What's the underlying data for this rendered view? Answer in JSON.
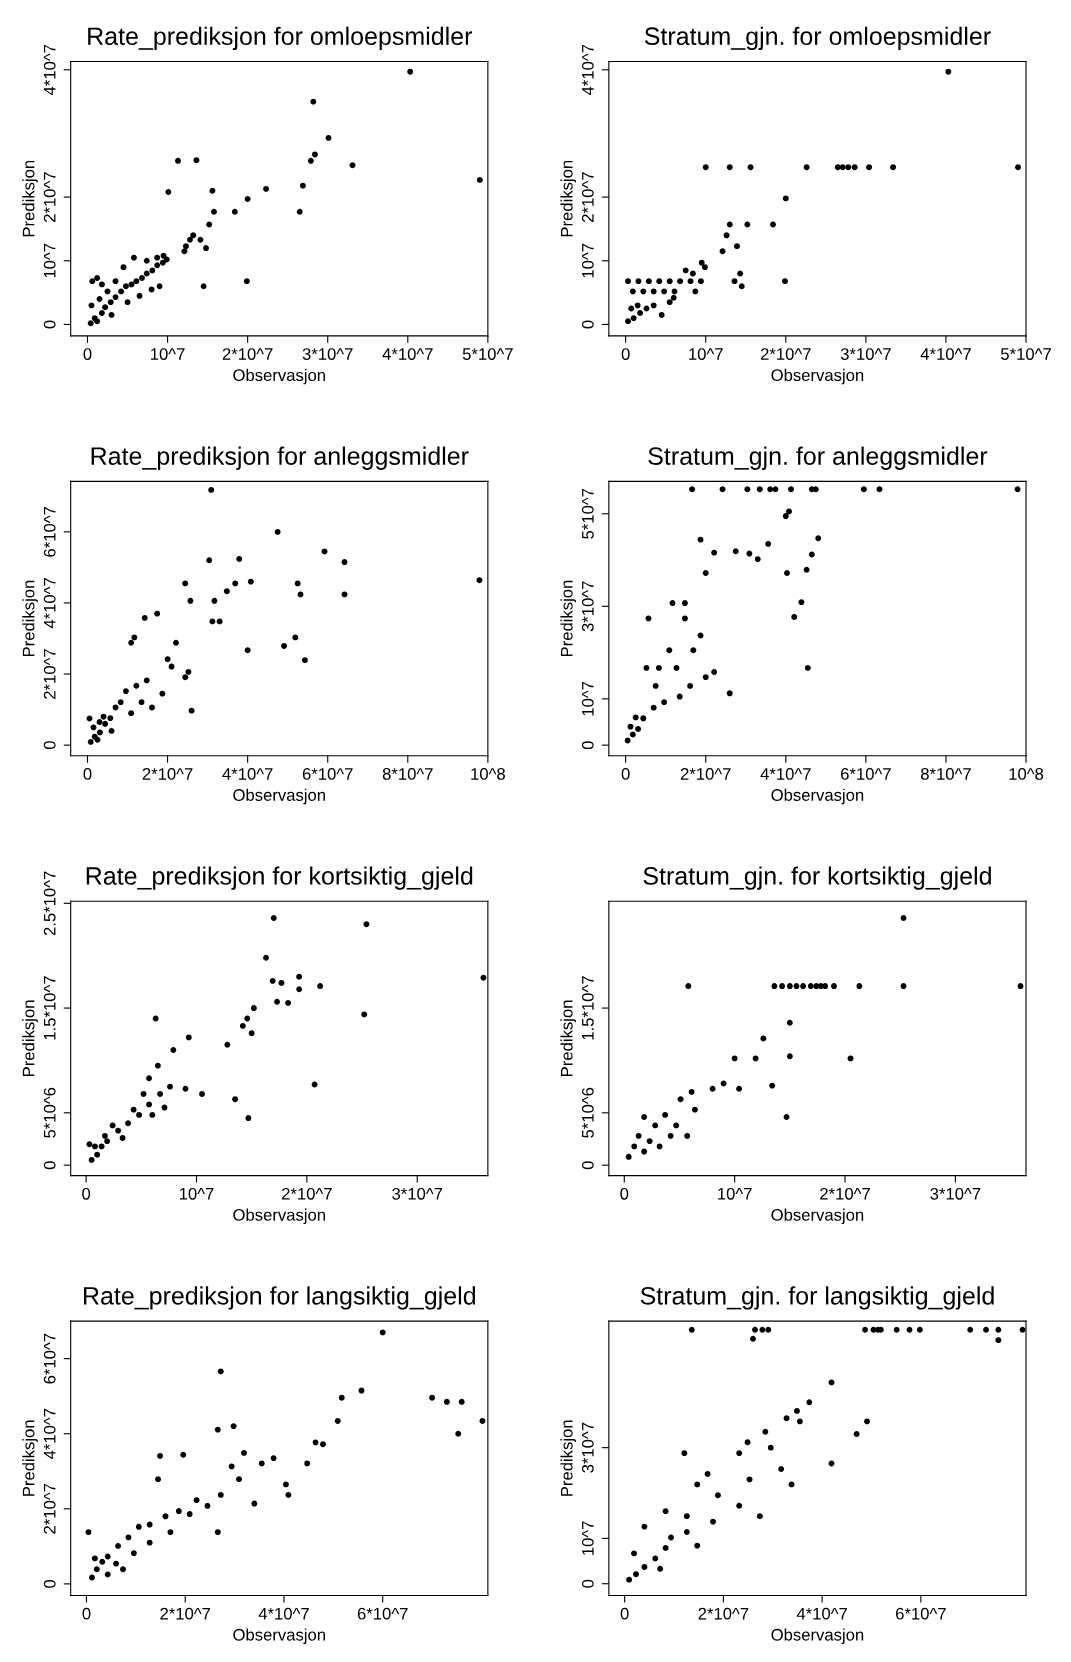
{
  "chart_data": [
    {
      "type": "scatter",
      "title": "Rate_prediksjon for omloepsmidler",
      "xlabel": "Observasjon",
      "ylabel": "Prediksjon",
      "color": "#000000",
      "marker": "circle",
      "xlim": [
        -2100000.0,
        50000000.0
      ],
      "ylim": [
        -1800000.0,
        41300000.0
      ],
      "xticks": [
        0,
        {
          "value": 10000000.0,
          "label": "10^7"
        },
        {
          "value": 20000000.0,
          "label": "2*10^7"
        },
        {
          "value": 30000000.0,
          "label": "3*10^7"
        },
        {
          "value": 40000000.0,
          "label": "4*10^7"
        },
        {
          "value": 50000000.0,
          "label": "5*10^7"
        }
      ],
      "yticks": [
        0,
        {
          "value": 10000000.0,
          "label": "10^7"
        },
        {
          "value": 20000000.0,
          "label": "2*10^7"
        },
        {
          "value": 40000000.0,
          "label": "4*10^7"
        }
      ],
      "x": [
        40300000.0,
        28200000.0,
        30100000.0,
        33100000.0,
        28400000.0,
        27900000.0,
        49000000.0,
        11300000.0,
        13600000.0,
        10100000.0,
        15600000.0,
        22300000.0,
        20000000.0,
        18400000.0,
        26900000.0,
        26500000.0,
        15800000.0,
        15200000.0,
        13200000.0,
        12800000.0,
        12300000.0,
        14100000.0,
        14800000.0,
        12100000.0,
        14500000.0,
        19900000.0,
        900000.0,
        1800000.0,
        2200000.0,
        2900000.0,
        3500000.0,
        4200000.0,
        4800000.0,
        5500000.0,
        6100000.0,
        6800000.0,
        7400000.0,
        8100000.0,
        8700000.0,
        9400000.0,
        9900000.0,
        600000.0,
        1200000.0,
        1800000.0,
        2500000.0,
        3500000.0,
        4500000.0,
        5800000.0,
        7400000.0,
        8700000.0,
        9500000.0,
        400000.0,
        1200000.0,
        500000.0,
        3000000.0,
        5000000.0,
        6500000.0,
        8000000.0,
        9000000.0,
        1500000.0
      ],
      "values": [
        39700000.0,
        35000000.0,
        29300000.0,
        25000000.0,
        26700000.0,
        25700000.0,
        22700000.0,
        25700000.0,
        25800000.0,
        20800000.0,
        21000000.0,
        21300000.0,
        19700000.0,
        17700000.0,
        21800000.0,
        17700000.0,
        17700000.0,
        15700000.0,
        14000000.0,
        13300000.0,
        12300000.0,
        13300000.0,
        12000000.0,
        11500000.0,
        6000000.0,
        6800000.0,
        1000000.0,
        1800000.0,
        2700000.0,
        3500000.0,
        4300000.0,
        5200000.0,
        6000000.0,
        6300000.0,
        6800000.0,
        7300000.0,
        8000000.0,
        8500000.0,
        9300000.0,
        9700000.0,
        10200000.0,
        6800000.0,
        7300000.0,
        6300000.0,
        5200000.0,
        6800000.0,
        9000000.0,
        10500000.0,
        10000000.0,
        10500000.0,
        10800000.0,
        200000.0,
        500000.0,
        3000000.0,
        1500000.0,
        3500000.0,
        4500000.0,
        5500000.0,
        6000000.0,
        4000000.0
      ]
    },
    {
      "type": "scatter",
      "title": "Stratum_gjn. for omloepsmidler",
      "xlabel": "Observasjon",
      "ylabel": "Prediksjon",
      "color": "#000000",
      "marker": "circle",
      "xlim": [
        -2100000.0,
        50000000.0
      ],
      "ylim": [
        -1800000.0,
        41300000.0
      ],
      "xticks": [
        0,
        {
          "value": 10000000.0,
          "label": "10^7"
        },
        {
          "value": 20000000.0,
          "label": "2*10^7"
        },
        {
          "value": 30000000.0,
          "label": "3*10^7"
        },
        {
          "value": 40000000.0,
          "label": "4*10^7"
        },
        {
          "value": 50000000.0,
          "label": "5*10^7"
        }
      ],
      "yticks": [
        0,
        {
          "value": 10000000.0,
          "label": "10^7"
        },
        {
          "value": 20000000.0,
          "label": "2*10^7"
        },
        {
          "value": 40000000.0,
          "label": "4*10^7"
        }
      ],
      "x": [
        40300000.0,
        49000000.0,
        10000000.0,
        13000000.0,
        15600000.0,
        22600000.0,
        26500000.0,
        27100000.0,
        27800000.0,
        28600000.0,
        30400000.0,
        33400000.0,
        20000000.0,
        18400000.0,
        15200000.0,
        13000000.0,
        12600000.0,
        13900000.0,
        12100000.0,
        14500000.0,
        19900000.0,
        14300000.0,
        13600000.0,
        300000.0,
        1600000.0,
        2900000.0,
        4200000.0,
        5500000.0,
        6800000.0,
        8100000.0,
        9400000.0,
        900000.0,
        2200000.0,
        3500000.0,
        4800000.0,
        6100000.0,
        8700000.0,
        8400000.0,
        9500000.0,
        9900000.0,
        7500000.0,
        300000.0,
        1000000.0,
        1800000.0,
        2600000.0,
        3500000.0,
        4500000.0,
        5500000.0,
        1500000.0,
        700000.0,
        6000000.0
      ],
      "values": [
        39700000.0,
        24700000.0,
        24700000.0,
        24700000.0,
        24700000.0,
        24700000.0,
        24700000.0,
        24700000.0,
        24700000.0,
        24700000.0,
        24700000.0,
        24700000.0,
        19800000.0,
        15700000.0,
        15700000.0,
        15700000.0,
        14000000.0,
        12300000.0,
        11500000.0,
        6000000.0,
        6800000.0,
        8000000.0,
        6800000.0,
        6800000.0,
        6800000.0,
        6800000.0,
        6800000.0,
        6800000.0,
        6800000.0,
        6800000.0,
        6800000.0,
        5200000.0,
        5200000.0,
        5200000.0,
        5200000.0,
        5200000.0,
        5200000.0,
        8000000.0,
        9700000.0,
        9000000.0,
        8500000.0,
        500000.0,
        1000000.0,
        1800000.0,
        2500000.0,
        3000000.0,
        1500000.0,
        3500000.0,
        3000000.0,
        2500000.0,
        4200000.0
      ]
    },
    {
      "type": "scatter",
      "title": "Rate_prediksjon for anleggsmidler",
      "xlabel": "Observasjon",
      "ylabel": "Prediksjon",
      "color": "#000000",
      "marker": "circle",
      "xlim": [
        -4200000.0,
        100000000.0
      ],
      "ylim": [
        -3000000.0,
        74200000.0
      ],
      "xticks": [
        0,
        {
          "value": 20000000.0,
          "label": "2*10^7"
        },
        {
          "value": 40000000.0,
          "label": "4*10^7"
        },
        {
          "value": 60000000.0,
          "label": "6*10^7"
        },
        {
          "value": 80000000.0,
          "label": "8*10^7"
        },
        {
          "value": 100000000.0,
          "label": "10^8"
        }
      ],
      "yticks": [
        0,
        {
          "value": 20000000.0,
          "label": "2*10^7"
        },
        {
          "value": 40000000.0,
          "label": "4*10^7"
        },
        {
          "value": 60000000.0,
          "label": "6*10^7"
        }
      ],
      "x": [
        30900000.0,
        47500000.0,
        59200000.0,
        30400000.0,
        37900000.0,
        64200000.0,
        40800000.0,
        24400000.0,
        25700000.0,
        17400000.0,
        14300000.0,
        11700000.0,
        10900000.0,
        31700000.0,
        34800000.0,
        36900000.0,
        31200000.0,
        33000000.0,
        52500000.0,
        53200000.0,
        64200000.0,
        97900000.0,
        40000000.0,
        49100000.0,
        51900000.0,
        54300000.0,
        22100000.0,
        20000000.0,
        21000000.0,
        25200000.0,
        24400000.0,
        26000000.0,
        14800000.0,
        12200000.0,
        9600000.0,
        8300000.0,
        7000000.0,
        5700000.0,
        4400000.0,
        3100000.0,
        1800000.0,
        800000.0,
        16100000.0,
        18700000.0,
        13500000.0,
        10900000.0,
        500000.0,
        1500000.0,
        2500000.0,
        4000000.0,
        6000000.0,
        3000000.0
      ],
      "values": [
        71800000.0,
        60000000.0,
        54500000.0,
        52000000.0,
        52400000.0,
        51500000.0,
        46000000.0,
        45500000.0,
        40600000.0,
        37000000.0,
        35800000.0,
        30300000.0,
        28800000.0,
        40600000.0,
        43300000.0,
        45500000.0,
        34800000.0,
        34800000.0,
        45500000.0,
        42400000.0,
        42400000.0,
        46400000.0,
        26700000.0,
        27900000.0,
        30300000.0,
        23900000.0,
        28800000.0,
        24200000.0,
        22100000.0,
        20600000.0,
        19100000.0,
        9700000.0,
        18200000.0,
        16700000.0,
        15200000.0,
        12100000.0,
        10600000.0,
        7600000.0,
        6000000.0,
        3600000.0,
        2400000.0,
        900000.0,
        10600000.0,
        14500000.0,
        12100000.0,
        9000000.0,
        7500000.0,
        5000000.0,
        1500000.0,
        8000000.0,
        4000000.0,
        6500000.0
      ]
    },
    {
      "type": "scatter",
      "title": "Stratum_gjn. for anleggsmidler",
      "xlabel": "Observasjon",
      "ylabel": "Prediksjon",
      "color": "#000000",
      "marker": "circle",
      "xlim": [
        -4200000.0,
        100000000.0
      ],
      "ylim": [
        -2300000.0,
        57000000.0
      ],
      "xticks": [
        0,
        {
          "value": 20000000.0,
          "label": "2*10^7"
        },
        {
          "value": 40000000.0,
          "label": "4*10^7"
        },
        {
          "value": 60000000.0,
          "label": "6*10^7"
        },
        {
          "value": 80000000.0,
          "label": "8*10^7"
        },
        {
          "value": 100000000.0,
          "label": "10^8"
        }
      ],
      "yticks": [
        0,
        {
          "value": 10000000.0,
          "label": "10^7"
        },
        {
          "value": 30000000.0,
          "label": "3*10^7"
        },
        {
          "value": 50000000.0,
          "label": "5*10^7"
        }
      ],
      "x": [
        16600000.0,
        24200000.0,
        30400000.0,
        33500000.0,
        36100000.0,
        37400000.0,
        41300000.0,
        46500000.0,
        47500000.0,
        59500000.0,
        63400000.0,
        97900000.0,
        40800000.0,
        40000000.0,
        18700000.0,
        22100000.0,
        27500000.0,
        30900000.0,
        35600000.0,
        33000000.0,
        48100000.0,
        46500000.0,
        45200000.0,
        40300000.0,
        20000000.0,
        5700000.0,
        11700000.0,
        14800000.0,
        14800000.0,
        18700000.0,
        16900000.0,
        10900000.0,
        12700000.0,
        5200000.0,
        8300000.0,
        42100000.0,
        43900000.0,
        45500000.0,
        22100000.0,
        26000000.0,
        20000000.0,
        16100000.0,
        7500000.0,
        13500000.0,
        9600000.0,
        7000000.0,
        4400000.0,
        3100000.0,
        1800000.0,
        500000.0,
        2500000.0,
        1200000.0
      ],
      "values": [
        55300000.0,
        55300000.0,
        55300000.0,
        55300000.0,
        55300000.0,
        55300000.0,
        55300000.0,
        55300000.0,
        55300000.0,
        55300000.0,
        55300000.0,
        55300000.0,
        50500000.0,
        49500000.0,
        44400000.0,
        41600000.0,
        41900000.0,
        41400000.0,
        43500000.0,
        40200000.0,
        44700000.0,
        41200000.0,
        37900000.0,
        37200000.0,
        37200000.0,
        27400000.0,
        30700000.0,
        30700000.0,
        27400000.0,
        23700000.0,
        20500000.0,
        20500000.0,
        16700000.0,
        16700000.0,
        16700000.0,
        27700000.0,
        30900000.0,
        16700000.0,
        15800000.0,
        11200000.0,
        14700000.0,
        12800000.0,
        12800000.0,
        10500000.0,
        9300000.0,
        8100000.0,
        5800000.0,
        3500000.0,
        2300000.0,
        1000000.0,
        6000000.0,
        4000000.0
      ]
    },
    {
      "type": "scatter",
      "title": "Rate_prediksjon for kortsiktig_gjeld",
      "xlabel": "Observasjon",
      "ylabel": "Prediksjon",
      "color": "#000000",
      "marker": "circle",
      "xlim": [
        -1400000.0,
        36400000.0
      ],
      "ylim": [
        -1000000.0,
        25200000.0
      ],
      "xticks": [
        0,
        {
          "value": 10000000.0,
          "label": "10^7"
        },
        {
          "value": 20000000.0,
          "label": "2*10^7"
        },
        {
          "value": 30000000.0,
          "label": "3*10^7"
        }
      ],
      "yticks": [
        0,
        {
          "value": 5000000.0,
          "label": "5*10^6"
        },
        {
          "value": 15000000.0,
          "label": "1.5*10^7"
        },
        {
          "value": 25000000.0,
          "label": "2.5*10^7"
        }
      ],
      "x": [
        17000000.0,
        25400000.0,
        16300000.0,
        36000000.0,
        16900000.0,
        17700000.0,
        19300000.0,
        19300000.0,
        21200000.0,
        17300000.0,
        18300000.0,
        15200000.0,
        14600000.0,
        14200000.0,
        15000000.0,
        25200000.0,
        12800000.0,
        9300000.0,
        7900000.0,
        6300000.0,
        6500000.0,
        5700000.0,
        7600000.0,
        9000000.0,
        10500000.0,
        13500000.0,
        14700000.0,
        20700000.0,
        5700000.0,
        4800000.0,
        3800000.0,
        2900000.0,
        1900000.0,
        1400000.0,
        1000000.0,
        500000.0,
        300000.0,
        800000.0,
        2400000.0,
        4300000.0,
        5200000.0,
        6700000.0,
        3300000.0,
        1700000.0,
        6000000.0,
        7100000.0
      ],
      "values": [
        23600000.0,
        23000000.0,
        19800000.0,
        17900000.0,
        17600000.0,
        17400000.0,
        18000000.0,
        16800000.0,
        17100000.0,
        15600000.0,
        15500000.0,
        15000000.0,
        14000000.0,
        13300000.0,
        12600000.0,
        14400000.0,
        11500000.0,
        12200000.0,
        11000000.0,
        14000000.0,
        9500000.0,
        8300000.0,
        7500000.0,
        7300000.0,
        6800000.0,
        6300000.0,
        4500000.0,
        7700000.0,
        5800000.0,
        4800000.0,
        4000000.0,
        3300000.0,
        2300000.0,
        1800000.0,
        1000000.0,
        500000.0,
        2000000.0,
        1800000.0,
        3800000.0,
        5300000.0,
        6800000.0,
        6800000.0,
        2600000.0,
        2800000.0,
        4800000.0,
        5500000.0
      ]
    },
    {
      "type": "scatter",
      "title": "Stratum_gjn. for kortsiktig_gjeld",
      "xlabel": "Observasjon",
      "ylabel": "Prediksjon",
      "color": "#000000",
      "marker": "circle",
      "xlim": [
        -1400000.0,
        36400000.0
      ],
      "ylim": [
        -1000000.0,
        25200000.0
      ],
      "xticks": [
        0,
        {
          "value": 10000000.0,
          "label": "10^7"
        },
        {
          "value": 20000000.0,
          "label": "2*10^7"
        },
        {
          "value": 30000000.0,
          "label": "3*10^7"
        }
      ],
      "yticks": [
        0,
        {
          "value": 5000000.0,
          "label": "5*10^6"
        },
        {
          "value": 15000000.0,
          "label": "1.5*10^7"
        }
      ],
      "x": [
        25300000.0,
        5800000.0,
        13600000.0,
        14300000.0,
        15000000.0,
        15600000.0,
        16200000.0,
        16900000.0,
        17400000.0,
        17800000.0,
        18200000.0,
        19000000.0,
        21300000.0,
        25300000.0,
        35900000.0,
        20500000.0,
        12600000.0,
        15000000.0,
        15000000.0,
        10000000.0,
        11900000.0,
        13400000.0,
        14700000.0,
        10400000.0,
        9000000.0,
        8000000.0,
        6100000.0,
        5100000.0,
        6400000.0,
        3700000.0,
        1800000.0,
        2800000.0,
        1300000.0,
        900000.0,
        400000.0,
        4700000.0,
        5700000.0,
        2300000.0,
        1800000.0,
        3200000.0,
        4200000.0
      ],
      "values": [
        23600000.0,
        17100000.0,
        17100000.0,
        17100000.0,
        17100000.0,
        17100000.0,
        17100000.0,
        17100000.0,
        17100000.0,
        17100000.0,
        17100000.0,
        17100000.0,
        17100000.0,
        17100000.0,
        17100000.0,
        10200000.0,
        12100000.0,
        13600000.0,
        10400000.0,
        10200000.0,
        10200000.0,
        7600000.0,
        4600000.0,
        7300000.0,
        7800000.0,
        7300000.0,
        7000000.0,
        6300000.0,
        5300000.0,
        4800000.0,
        4600000.0,
        3800000.0,
        2800000.0,
        1800000.0,
        800000.0,
        3800000.0,
        2800000.0,
        2300000.0,
        1300000.0,
        1800000.0,
        2800000.0
      ]
    },
    {
      "type": "scatter",
      "title": "Rate_prediksjon for langsiktig_gjeld",
      "xlabel": "Observasjon",
      "ylabel": "Prediksjon",
      "color": "#000000",
      "marker": "circle",
      "xlim": [
        -3200000.0,
        81300000.0
      ],
      "ylim": [
        -3100000.0,
        70000000.0
      ],
      "xticks": [
        0,
        {
          "value": 20000000.0,
          "label": "2*10^7"
        },
        {
          "value": 40000000.0,
          "label": "4*10^7"
        },
        {
          "value": 60000000.0,
          "label": "6*10^7"
        }
      ],
      "yticks": [
        0,
        {
          "value": 20000000.0,
          "label": "2*10^7"
        },
        {
          "value": 40000000.0,
          "label": "4*10^7"
        },
        {
          "value": 60000000.0,
          "label": "6*10^7"
        }
      ],
      "x": [
        60000000.0,
        27200000.0,
        55700000.0,
        51700000.0,
        70000000.0,
        73000000.0,
        76000000.0,
        80200000.0,
        75300000.0,
        50900000.0,
        47900000.0,
        44700000.0,
        46400000.0,
        37900000.0,
        35500000.0,
        31900000.0,
        30900000.0,
        40900000.0,
        40400000.0,
        34000000.0,
        29800000.0,
        26600000.0,
        29400000.0,
        26600000.0,
        27200000.0,
        22300000.0,
        19600000.0,
        14900000.0,
        14500000.0,
        18700000.0,
        16000000.0,
        12800000.0,
        10600000.0,
        8500000.0,
        6400000.0,
        4300000.0,
        3200000.0,
        2100000.0,
        1100000.0,
        400000.0,
        9600000.0,
        12800000.0,
        6000000.0,
        7400000.0,
        1700000.0,
        4300000.0,
        17000000.0,
        20900000.0,
        24500000.0
      ],
      "values": [
        67000000.0,
        56600000.0,
        51500000.0,
        49600000.0,
        49600000.0,
        48500000.0,
        48500000.0,
        43400000.0,
        40000000.0,
        43400000.0,
        37200000.0,
        32100000.0,
        37700000.0,
        33500000.0,
        32100000.0,
        34900000.0,
        27900000.0,
        23700000.0,
        26500000.0,
        21400000.0,
        42000000.0,
        41100000.0,
        31300000.0,
        13800000.0,
        23700000.0,
        22300000.0,
        34400000.0,
        34100000.0,
        27900000.0,
        19400000.0,
        18000000.0,
        15800000.0,
        15200000.0,
        12400000.0,
        10100000.0,
        7300000.0,
        5900000.0,
        3900000.0,
        1700000.0,
        13800000.0,
        8200000.0,
        11000000.0,
        5400000.0,
        3900000.0,
        6800000.0,
        2500000.0,
        13800000.0,
        18600000.0,
        20800000.0
      ]
    },
    {
      "type": "scatter",
      "title": "Stratum_gjn. for langsiktig_gjeld",
      "xlabel": "Observasjon",
      "ylabel": "Prediksjon",
      "color": "#000000",
      "marker": "circle",
      "xlim": [
        -3200000.0,
        81300000.0
      ],
      "ylim": [
        -2600000.0,
        57900000.0
      ],
      "xticks": [
        0,
        {
          "value": 20000000.0,
          "label": "2*10^7"
        },
        {
          "value": 40000000.0,
          "label": "4*10^7"
        },
        {
          "value": 60000000.0,
          "label": "6*10^7"
        }
      ],
      "yticks": [
        0,
        {
          "value": 10000000.0,
          "label": "10^7"
        },
        {
          "value": 30000000.0,
          "label": "3*10^7"
        }
      ],
      "x": [
        13600000.0,
        26400000.0,
        27900000.0,
        29100000.0,
        48700000.0,
        50400000.0,
        51300000.0,
        51900000.0,
        55100000.0,
        57700000.0,
        59800000.0,
        70000000.0,
        73200000.0,
        75700000.0,
        80600000.0,
        26000000.0,
        75700000.0,
        41900000.0,
        37400000.0,
        34900000.0,
        32800000.0,
        35500000.0,
        49100000.0,
        47000000.0,
        28500000.0,
        24900000.0,
        23200000.0,
        29600000.0,
        31700000.0,
        41900000.0,
        33800000.0,
        25300000.0,
        16800000.0,
        12100000.0,
        14700000.0,
        18900000.0,
        23200000.0,
        27400000.0,
        12600000.0,
        8300000.0,
        4000000.0,
        9400000.0,
        8300000.0,
        6200000.0,
        4000000.0,
        2300000.0,
        900000.0,
        7200000.0,
        1900000.0,
        12600000.0,
        17900000.0,
        14700000.0
      ],
      "values": [
        56000000.0,
        56000000.0,
        56000000.0,
        56000000.0,
        56000000.0,
        56000000.0,
        56000000.0,
        56000000.0,
        56000000.0,
        56000000.0,
        56000000.0,
        56000000.0,
        56000000.0,
        56000000.0,
        56000000.0,
        54000000.0,
        53700000.0,
        44400000.0,
        40000000.0,
        38100000.0,
        36500000.0,
        35800000.0,
        35800000.0,
        33000000.0,
        33500000.0,
        31200000.0,
        28800000.0,
        30000000.0,
        25300000.0,
        26500000.0,
        21900000.0,
        23000000.0,
        24200000.0,
        28800000.0,
        21900000.0,
        19500000.0,
        17200000.0,
        14900000.0,
        14900000.0,
        16000000.0,
        12600000.0,
        10200000.0,
        7900000.0,
        5600000.0,
        3700000.0,
        2100000.0,
        900000.0,
        3300000.0,
        6700000.0,
        11400000.0,
        13700000.0,
        8400000.0
      ]
    }
  ]
}
